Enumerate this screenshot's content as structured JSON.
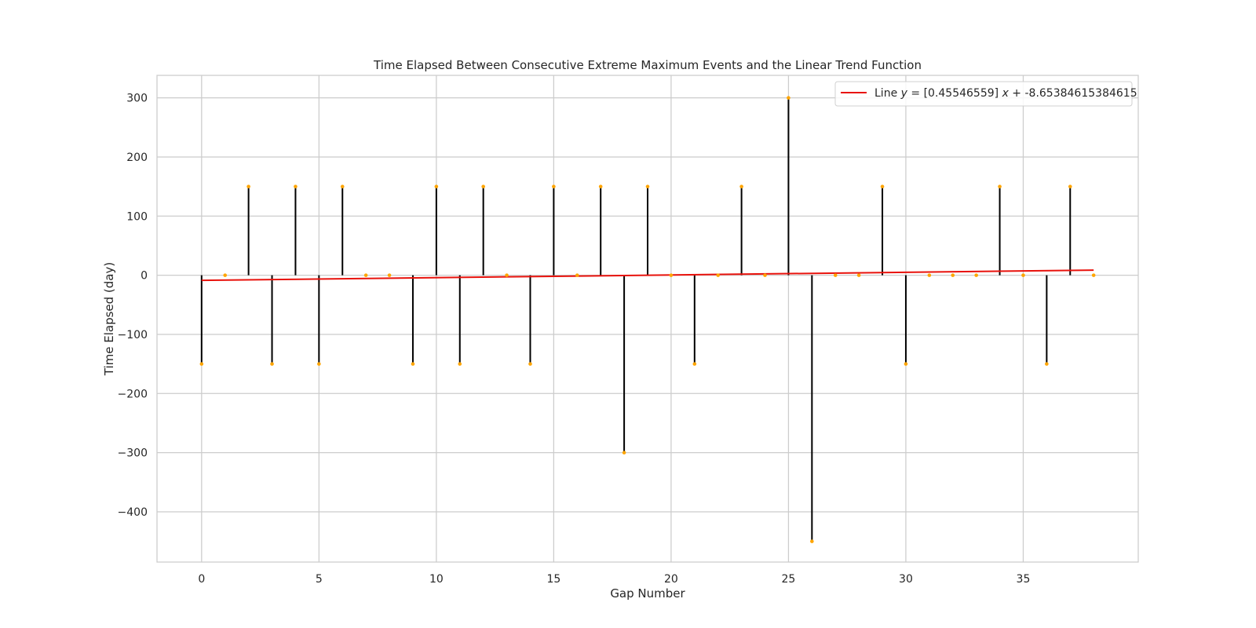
{
  "chart_data": {
    "type": "stem",
    "title": "Time Elapsed Between Consecutive Extreme Maximum Events and the Linear Trend Function",
    "xlabel": "Gap Number",
    "ylabel": "Time Elapsed (day)",
    "xlim": [
      -1.9,
      39.9
    ],
    "ylim": [
      -485,
      338
    ],
    "xticks": [
      0,
      5,
      10,
      15,
      20,
      25,
      30,
      35
    ],
    "yticks": [
      300,
      200,
      100,
      0,
      -100,
      -200,
      -300,
      -400
    ],
    "xtick_labels": [
      "0",
      "5",
      "10",
      "15",
      "20",
      "25",
      "30",
      "35"
    ],
    "ytick_labels": [
      "300",
      "200",
      "100",
      "0",
      "−100",
      "−200",
      "−300",
      "−400"
    ],
    "grid": true,
    "x": [
      0,
      1,
      2,
      3,
      4,
      5,
      6,
      7,
      8,
      9,
      10,
      11,
      12,
      13,
      14,
      15,
      16,
      17,
      18,
      19,
      20,
      21,
      22,
      23,
      24,
      25,
      26,
      27,
      28,
      29,
      30,
      31,
      32,
      33,
      34,
      35,
      36,
      37,
      38
    ],
    "y": [
      -150,
      0,
      150,
      -150,
      150,
      -150,
      150,
      0,
      0,
      -150,
      150,
      -150,
      150,
      0,
      -150,
      150,
      0,
      150,
      -300,
      150,
      0,
      -150,
      0,
      150,
      0,
      300,
      -450,
      0,
      0,
      150,
      -150,
      0,
      0,
      0,
      150,
      0,
      -150,
      150,
      0
    ],
    "trend_line": {
      "name": "Line $y = [0.45546559]\\,x + -8.65384615384615$",
      "slope": 0.45546559,
      "intercept": -8.65384615384615,
      "x_range": [
        0,
        38
      ],
      "color": "#e8120c"
    },
    "stem_color": "#000000",
    "marker_color": "#ffa500",
    "legend_position": "top-right",
    "legend": {
      "prefix": "Line ",
      "var_y": "y",
      "eq": " = [0.45546559] ",
      "var_x": "x",
      "suffix": " + -8.65384615384615"
    }
  }
}
